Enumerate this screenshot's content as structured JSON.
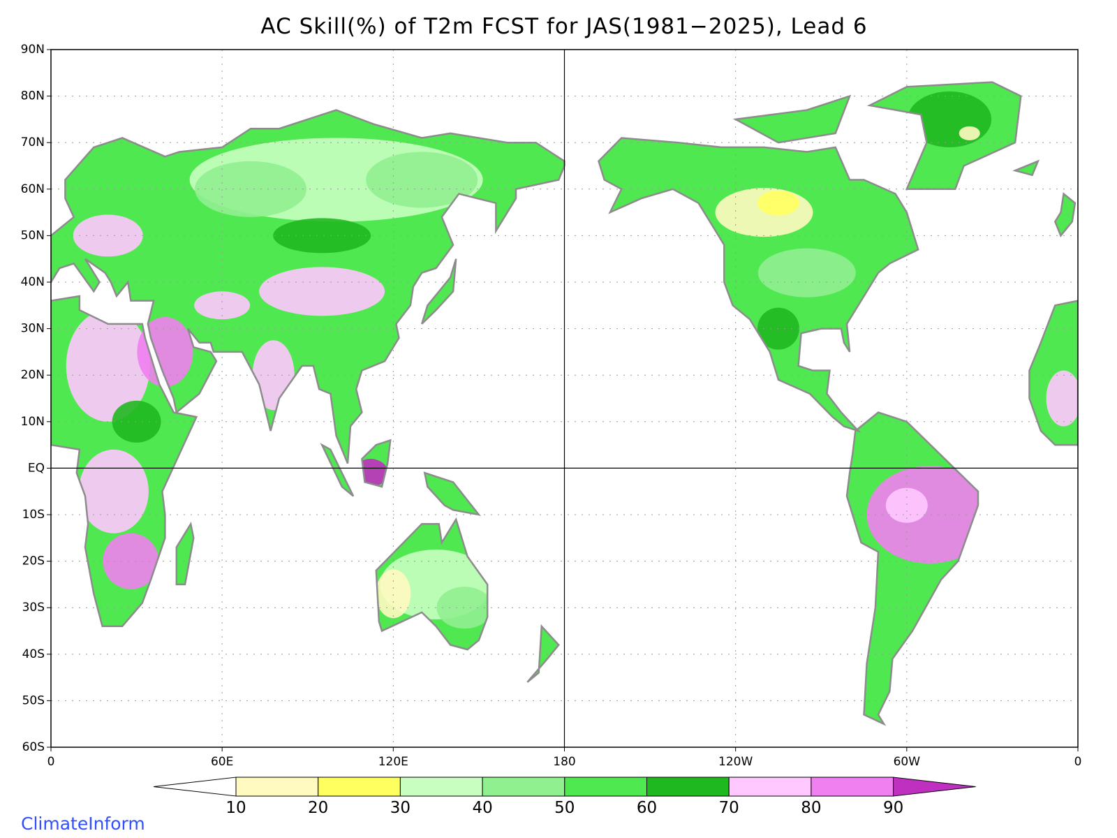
{
  "title": "AC Skill(%) of T2m FCST for JAS(1981−2025), Lead 6",
  "map": {
    "xlim": [
      0,
      360
    ],
    "ylim": [
      -60,
      90
    ],
    "xticks": [
      0,
      {
        "value": 60,
        "label": "60E"
      },
      {
        "value": 120,
        "label": "120E"
      },
      180,
      {
        "value": 240,
        "label": "120W"
      },
      {
        "value": 300,
        "label": "60W"
      },
      {
        "value": 360,
        "label": "0"
      }
    ],
    "yticks": [
      {
        "value": 90,
        "label": "90N"
      },
      {
        "value": 80,
        "label": "80N"
      },
      {
        "value": 70,
        "label": "70N"
      },
      {
        "value": 60,
        "label": "60N"
      },
      {
        "value": 50,
        "label": "50N"
      },
      {
        "value": 40,
        "label": "40N"
      },
      {
        "value": 30,
        "label": "30N"
      },
      {
        "value": 20,
        "label": "20N"
      },
      {
        "value": 10,
        "label": "10N"
      },
      {
        "value": 0,
        "label": "EQ"
      },
      {
        "value": -10,
        "label": "10S"
      },
      {
        "value": -20,
        "label": "20S"
      },
      {
        "value": -30,
        "label": "30S"
      },
      {
        "value": -40,
        "label": "40S"
      },
      {
        "value": -50,
        "label": "50S"
      },
      {
        "value": -60,
        "label": "60S"
      }
    ]
  },
  "colorbar": {
    "levels": [
      10,
      20,
      30,
      40,
      50,
      60,
      70,
      80,
      90
    ],
    "colors": [
      "#ffffff",
      "#fffac0",
      "#ffff60",
      "#c8ffc0",
      "#90f090",
      "#50e850",
      "#20b820",
      "#ffc8ff",
      "#f080f0",
      "#c030c0"
    ]
  },
  "credit": "ClimateInform"
}
